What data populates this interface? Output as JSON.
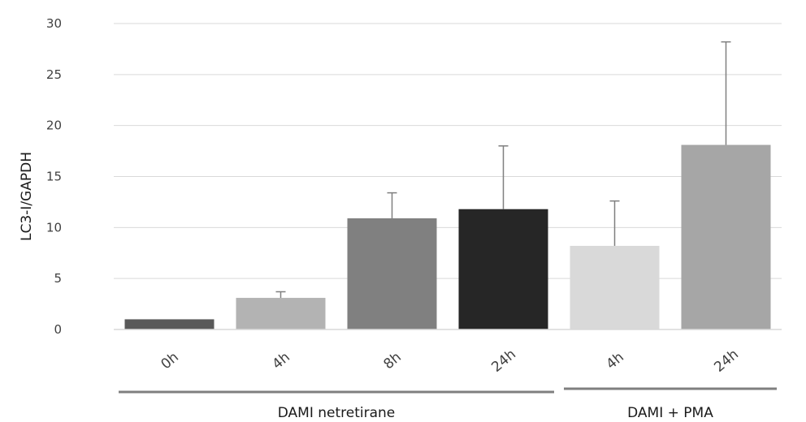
{
  "chart_data": {
    "type": "bar",
    "ylabel": "LC3-I/GAPDH",
    "ylim": [
      0,
      30
    ],
    "yticks": [
      "0",
      "5",
      "10",
      "15",
      "20",
      "25",
      "30"
    ],
    "grid": true,
    "categories": [
      "0h",
      "4h",
      "8h",
      "24h",
      "4h",
      "24h"
    ],
    "values": [
      1.0,
      3.1,
      10.9,
      11.8,
      8.2,
      18.1
    ],
    "errors": [
      0,
      0.6,
      2.5,
      6.2,
      4.4,
      10.1
    ],
    "colors": [
      "#595959",
      "#b3b3b3",
      "#808080",
      "#262626",
      "#d9d9d9",
      "#a6a6a6"
    ],
    "groups": [
      {
        "label": "DAMI netretirane",
        "start": 0,
        "end": 3
      },
      {
        "label": "DAMI + PMA",
        "start": 4,
        "end": 5
      }
    ]
  }
}
